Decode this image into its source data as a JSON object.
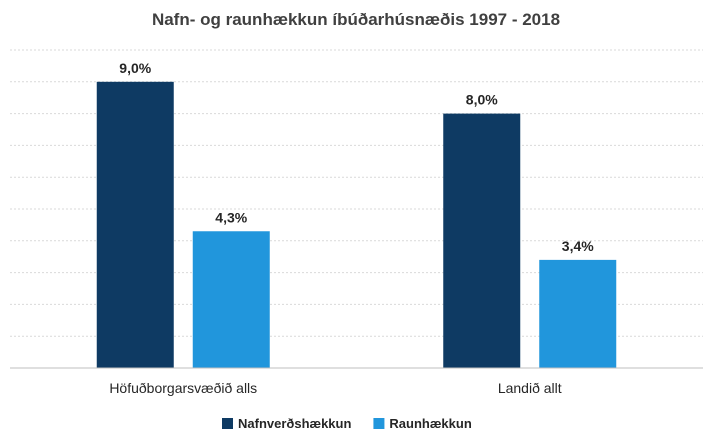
{
  "chart_data": {
    "type": "bar",
    "title": "Nafn- og raunhækkun íbúðarhúsnæðis 1997 - 2018",
    "categories": [
      "Höfuðborgarsvæðið alls",
      "Landið allt"
    ],
    "series": [
      {
        "name": "Nafnverðshækkun",
        "values": [
          9.0,
          8.0
        ],
        "labels": [
          "9,0%",
          "8,0%"
        ],
        "color": "#0e3a63"
      },
      {
        "name": "Raunhækkun",
        "values": [
          4.3,
          3.4
        ],
        "labels": [
          "4,3%",
          "3,4%"
        ],
        "color": "#2196dc"
      }
    ],
    "xlabel": "",
    "ylabel": "",
    "ylim": [
      0,
      10
    ],
    "grid": true,
    "legend": "bottom"
  }
}
